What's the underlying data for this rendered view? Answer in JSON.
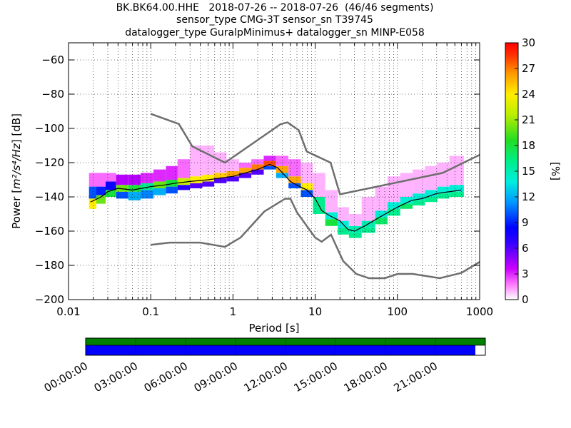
{
  "header": {
    "title_line1": "BK.BK64.00.HHE   2018-07-26 -- 2018-07-26  (46/46 segments)",
    "title_line2": "sensor_type CMG-3T sensor_sn T39745",
    "title_line3": "datalogger_type GuralpMinimus+ datalogger_sn MINP-E058"
  },
  "colors": {
    "model_curve": "#6e6e6e",
    "mean_curve": "#000000",
    "timeline_top": "#008000",
    "timeline_bottom": "#0000ff"
  },
  "chart_data": {
    "type": "heatmap",
    "xlabel": "Period [s]",
    "ylabel": "Power [m²/s⁴/Hz] [dB]",
    "ylabel_main": "Power [",
    "ylabel_unit": "m²/s⁴/Hz",
    "ylabel_tail": "] [dB]",
    "x_scale": "log",
    "xlim": [
      0.01,
      1000
    ],
    "ylim": [
      -200,
      -50
    ],
    "x_ticks": [
      0.01,
      0.1,
      1,
      10,
      100,
      1000
    ],
    "x_tick_labels": [
      "0.01",
      "0.1",
      "1",
      "10",
      "100",
      "1000"
    ],
    "y_ticks": [
      -200,
      -180,
      -160,
      -140,
      -120,
      -100,
      -80,
      -60
    ],
    "y_tick_labels": [
      "−200",
      "−180",
      "−160",
      "−140",
      "−120",
      "−100",
      "−80",
      "−60"
    ],
    "colorbar": {
      "label": "[%]",
      "min": 0,
      "max": 30,
      "ticks": [
        0,
        3,
        6,
        9,
        12,
        15,
        18,
        21,
        24,
        27,
        30
      ],
      "tick_labels": [
        "0",
        "3",
        "6",
        "9",
        "12",
        "15",
        "18",
        "21",
        "24",
        "27",
        "30"
      ]
    },
    "noise_models": [
      {
        "name": "NHNM",
        "points": [
          [
            0.1,
            -91.5
          ],
          [
            0.22,
            -97.4
          ],
          [
            0.32,
            -110.5
          ],
          [
            0.8,
            -120
          ],
          [
            3.8,
            -97.5
          ],
          [
            4.6,
            -96.5
          ],
          [
            6.3,
            -101
          ],
          [
            7.9,
            -113.5
          ],
          [
            15.4,
            -120
          ],
          [
            20,
            -138.5
          ],
          [
            354.8,
            -126
          ],
          [
            10000,
            -92
          ]
        ]
      },
      {
        "name": "NLNM",
        "points": [
          [
            0.1,
            -168
          ],
          [
            0.17,
            -166.7
          ],
          [
            0.4,
            -166.7
          ],
          [
            0.8,
            -169.2
          ],
          [
            1.24,
            -163.7
          ],
          [
            2.4,
            -148.6
          ],
          [
            4.3,
            -141.1
          ],
          [
            5,
            -141.1
          ],
          [
            6,
            -149
          ],
          [
            10,
            -163.8
          ],
          [
            12,
            -166.2
          ],
          [
            15.6,
            -162.1
          ],
          [
            21.9,
            -177.5
          ],
          [
            31.6,
            -185
          ],
          [
            45,
            -187.5
          ],
          [
            70,
            -187.5
          ],
          [
            101,
            -185
          ],
          [
            154,
            -185
          ],
          [
            328,
            -187.5
          ],
          [
            600,
            -184.4
          ],
          [
            1000,
            -178
          ]
        ]
      }
    ],
    "mean_psd": [
      [
        0.0185,
        -143
      ],
      [
        0.025,
        -140
      ],
      [
        0.03,
        -137
      ],
      [
        0.04,
        -135
      ],
      [
        0.06,
        -136
      ],
      [
        0.1,
        -134
      ],
      [
        0.15,
        -133
      ],
      [
        0.2,
        -132
      ],
      [
        0.3,
        -131
      ],
      [
        0.5,
        -130
      ],
      [
        1,
        -128
      ],
      [
        2,
        -124
      ],
      [
        2.8,
        -121
      ],
      [
        3.5,
        -123
      ],
      [
        5,
        -131
      ],
      [
        6.5,
        -134
      ],
      [
        8,
        -136
      ],
      [
        10,
        -141
      ],
      [
        12,
        -148
      ],
      [
        15,
        -151
      ],
      [
        20,
        -154
      ],
      [
        25,
        -159
      ],
      [
        30,
        -160
      ],
      [
        40,
        -157
      ],
      [
        60,
        -152
      ],
      [
        100,
        -146
      ],
      [
        150,
        -142
      ],
      [
        200,
        -141
      ],
      [
        300,
        -138
      ],
      [
        600,
        -136
      ]
    ],
    "psd_density": [
      {
        "period": 0.019,
        "bands": [
          [
            -147,
            -141,
            24
          ],
          [
            -141,
            -134,
            10
          ],
          [
            -134,
            -126,
            2
          ]
        ]
      },
      {
        "period": 0.025,
        "bands": [
          [
            -144,
            -139,
            20
          ],
          [
            -139,
            -134,
            9
          ],
          [
            -134,
            -126,
            2
          ]
        ]
      },
      {
        "period": 0.032,
        "bands": [
          [
            -140,
            -136,
            18
          ],
          [
            -136,
            -131,
            8
          ],
          [
            -131,
            -126,
            2
          ]
        ]
      },
      {
        "period": 0.045,
        "bands": [
          [
            -141,
            -137,
            10
          ],
          [
            -137,
            -133,
            20
          ],
          [
            -133,
            -127,
            4
          ]
        ]
      },
      {
        "period": 0.063,
        "bands": [
          [
            -142,
            -137,
            12
          ],
          [
            -137,
            -133,
            18
          ],
          [
            -133,
            -127,
            4
          ]
        ]
      },
      {
        "period": 0.09,
        "bands": [
          [
            -141,
            -136,
            11
          ],
          [
            -136,
            -132,
            16
          ],
          [
            -132,
            -126,
            3
          ]
        ]
      },
      {
        "period": 0.13,
        "bands": [
          [
            -139,
            -135,
            12
          ],
          [
            -135,
            -131,
            20
          ],
          [
            -131,
            -124,
            3
          ]
        ]
      },
      {
        "period": 0.18,
        "bands": [
          [
            -138,
            -134,
            10
          ],
          [
            -134,
            -130,
            18
          ],
          [
            -130,
            -122,
            3
          ]
        ]
      },
      {
        "period": 0.25,
        "bands": [
          [
            -136,
            -133,
            7
          ],
          [
            -133,
            -129,
            22
          ],
          [
            -129,
            -118,
            2
          ]
        ]
      },
      {
        "period": 0.36,
        "bands": [
          [
            -135,
            -132,
            6
          ],
          [
            -132,
            -128,
            24
          ],
          [
            -128,
            -110,
            1
          ]
        ]
      },
      {
        "period": 0.5,
        "bands": [
          [
            -134,
            -131,
            6
          ],
          [
            -131,
            -127,
            24
          ],
          [
            -127,
            -110,
            1
          ]
        ]
      },
      {
        "period": 0.7,
        "bands": [
          [
            -132,
            -129,
            6
          ],
          [
            -129,
            -126,
            25
          ],
          [
            -126,
            -114,
            1
          ]
        ]
      },
      {
        "period": 1.0,
        "bands": [
          [
            -131,
            -128,
            6
          ],
          [
            -128,
            -125,
            26
          ],
          [
            -125,
            -118,
            1
          ]
        ]
      },
      {
        "period": 1.4,
        "bands": [
          [
            -129,
            -126,
            6
          ],
          [
            -126,
            -123,
            26
          ],
          [
            -123,
            -120,
            2
          ]
        ]
      },
      {
        "period": 2.0,
        "bands": [
          [
            -127,
            -124,
            6
          ],
          [
            -124,
            -121,
            27
          ],
          [
            -121,
            -118,
            2
          ]
        ]
      },
      {
        "period": 2.8,
        "bands": [
          [
            -124,
            -122,
            10
          ],
          [
            -122,
            -119,
            28
          ],
          [
            -119,
            -116,
            3
          ]
        ]
      },
      {
        "period": 4.0,
        "bands": [
          [
            -129,
            -126,
            12
          ],
          [
            -126,
            -122,
            26
          ],
          [
            -122,
            -116,
            2
          ]
        ]
      },
      {
        "period": 5.6,
        "bands": [
          [
            -135,
            -132,
            10
          ],
          [
            -132,
            -128,
            26
          ],
          [
            -128,
            -118,
            2
          ]
        ]
      },
      {
        "period": 8.0,
        "bands": [
          [
            -140,
            -136,
            10
          ],
          [
            -136,
            -132,
            24
          ],
          [
            -132,
            -120,
            1
          ]
        ]
      },
      {
        "period": 11,
        "bands": [
          [
            -150,
            -146,
            16
          ],
          [
            -146,
            -140,
            16
          ],
          [
            -140,
            -126,
            1
          ]
        ]
      },
      {
        "period": 16,
        "bands": [
          [
            -157,
            -153,
            18
          ],
          [
            -153,
            -149,
            14
          ],
          [
            -149,
            -136,
            1
          ]
        ]
      },
      {
        "period": 22,
        "bands": [
          [
            -162,
            -158,
            16
          ],
          [
            -158,
            -154,
            14
          ],
          [
            -154,
            -146,
            1
          ]
        ]
      },
      {
        "period": 30,
        "bands": [
          [
            -164,
            -161,
            16
          ],
          [
            -161,
            -157,
            15
          ],
          [
            -157,
            -150,
            1
          ]
        ]
      },
      {
        "period": 45,
        "bands": [
          [
            -161,
            -158,
            16
          ],
          [
            -158,
            -154,
            15
          ],
          [
            -154,
            -140,
            1
          ]
        ]
      },
      {
        "period": 64,
        "bands": [
          [
            -156,
            -152,
            17
          ],
          [
            -152,
            -148,
            14
          ],
          [
            -148,
            -134,
            1
          ]
        ]
      },
      {
        "period": 90,
        "bands": [
          [
            -151,
            -147,
            16
          ],
          [
            -147,
            -143,
            14
          ],
          [
            -143,
            -128,
            1
          ]
        ]
      },
      {
        "period": 130,
        "bands": [
          [
            -147,
            -144,
            17
          ],
          [
            -144,
            -140,
            14
          ],
          [
            -140,
            -126,
            1
          ]
        ]
      },
      {
        "period": 180,
        "bands": [
          [
            -145,
            -142,
            16
          ],
          [
            -142,
            -138,
            14
          ],
          [
            -138,
            -124,
            1
          ]
        ]
      },
      {
        "period": 260,
        "bands": [
          [
            -143,
            -140,
            16
          ],
          [
            -140,
            -136,
            14
          ],
          [
            -136,
            -122,
            1
          ]
        ]
      },
      {
        "period": 360,
        "bands": [
          [
            -141,
            -138,
            16
          ],
          [
            -138,
            -134,
            14
          ],
          [
            -134,
            -120,
            1
          ]
        ]
      },
      {
        "period": 510,
        "bands": [
          [
            -140,
            -137,
            16
          ],
          [
            -137,
            -133,
            14
          ],
          [
            -133,
            -116,
            1
          ]
        ]
      },
      {
        "period": 600,
        "bands": [
          [
            -140,
            -137,
            16
          ],
          [
            -137,
            -133,
            14
          ],
          [
            -133,
            -116,
            1
          ]
        ]
      }
    ],
    "timeline": {
      "tick_labels": [
        "00:00:00",
        "03:00:00",
        "06:00:00",
        "09:00:00",
        "12:00:00",
        "15:00:00",
        "18:00:00",
        "21:00:00"
      ],
      "coverage_fraction": 0.975
    }
  }
}
